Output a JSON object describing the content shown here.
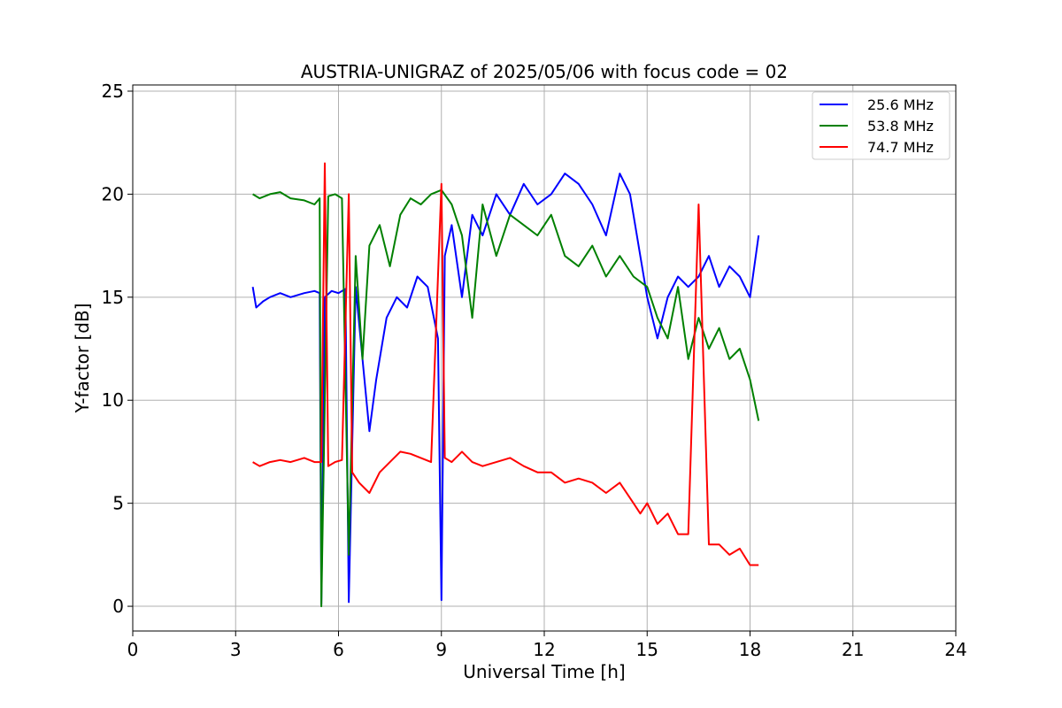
{
  "chart_data": {
    "type": "line",
    "title": "AUSTRIA-UNIGRAZ of 2025/05/06 with focus code = 02",
    "xlabel": "Universal Time [h]",
    "ylabel": "Y-factor [dB]",
    "xlim": [
      0,
      24
    ],
    "ylim": [
      -1.2,
      25.3
    ],
    "xticks": [
      0,
      3,
      6,
      9,
      12,
      15,
      18,
      21,
      24
    ],
    "yticks": [
      0,
      5,
      10,
      15,
      20,
      25
    ],
    "grid": true,
    "legend_position": "top-right",
    "series": [
      {
        "name": "25.6 MHz",
        "color": "#0000ff",
        "x": [
          3.5,
          3.6,
          3.8,
          4.0,
          4.3,
          4.6,
          5.0,
          5.3,
          5.45,
          5.5,
          5.6,
          5.8,
          6.0,
          6.2,
          6.3,
          6.5,
          6.7,
          6.9,
          7.1,
          7.4,
          7.7,
          8.0,
          8.3,
          8.6,
          8.9,
          9.0,
          9.1,
          9.3,
          9.6,
          9.9,
          10.2,
          10.6,
          11.0,
          11.4,
          11.8,
          12.2,
          12.6,
          13.0,
          13.4,
          13.8,
          14.2,
          14.5,
          14.8,
          15.0,
          15.3,
          15.6,
          15.9,
          16.2,
          16.5,
          16.8,
          17.1,
          17.4,
          17.7,
          18.0,
          18.25
        ],
        "y": [
          15.5,
          14.5,
          14.8,
          15.0,
          15.2,
          15.0,
          15.2,
          15.3,
          15.2,
          0.1,
          15.0,
          15.3,
          15.2,
          15.4,
          0.2,
          15.5,
          12.0,
          8.5,
          11.0,
          14.0,
          15.0,
          14.5,
          16.0,
          15.5,
          13.0,
          0.3,
          17.0,
          18.5,
          15.0,
          19.0,
          18.0,
          20.0,
          19.0,
          20.5,
          19.5,
          20.0,
          21.0,
          20.5,
          19.5,
          18.0,
          21.0,
          20.0,
          17.0,
          15.0,
          13.0,
          15.0,
          16.0,
          15.5,
          16.0,
          17.0,
          15.5,
          16.5,
          16.0,
          15.0,
          18.0
        ]
      },
      {
        "name": "53.8 MHz",
        "color": "#008000",
        "x": [
          3.5,
          3.7,
          4.0,
          4.3,
          4.6,
          5.0,
          5.3,
          5.45,
          5.5,
          5.7,
          5.9,
          6.1,
          6.3,
          6.5,
          6.7,
          6.9,
          7.2,
          7.5,
          7.8,
          8.1,
          8.4,
          8.7,
          9.0,
          9.3,
          9.6,
          9.9,
          10.2,
          10.6,
          11.0,
          11.4,
          11.8,
          12.2,
          12.6,
          13.0,
          13.4,
          13.8,
          14.2,
          14.6,
          15.0,
          15.3,
          15.6,
          15.9,
          16.2,
          16.5,
          16.8,
          17.1,
          17.4,
          17.7,
          18.0,
          18.25
        ],
        "y": [
          20.0,
          19.8,
          20.0,
          20.1,
          19.8,
          19.7,
          19.5,
          19.8,
          0.0,
          19.9,
          20.0,
          19.8,
          2.5,
          17.0,
          12.0,
          17.5,
          18.5,
          16.5,
          19.0,
          19.8,
          19.5,
          20.0,
          20.2,
          19.5,
          18.0,
          14.0,
          19.5,
          17.0,
          19.0,
          18.5,
          18.0,
          19.0,
          17.0,
          16.5,
          17.5,
          16.0,
          17.0,
          16.0,
          15.5,
          14.0,
          13.0,
          15.5,
          12.0,
          14.0,
          12.5,
          13.5,
          12.0,
          12.5,
          11.0,
          9.0
        ]
      },
      {
        "name": "74.7 MHz",
        "color": "#ff0000",
        "x": [
          3.5,
          3.7,
          4.0,
          4.3,
          4.6,
          5.0,
          5.3,
          5.5,
          5.6,
          5.7,
          5.9,
          6.1,
          6.3,
          6.4,
          6.6,
          6.9,
          7.2,
          7.5,
          7.8,
          8.1,
          8.4,
          8.7,
          9.0,
          9.1,
          9.3,
          9.6,
          9.9,
          10.2,
          10.6,
          11.0,
          11.4,
          11.8,
          12.2,
          12.6,
          13.0,
          13.4,
          13.8,
          14.2,
          14.6,
          14.8,
          15.0,
          15.3,
          15.6,
          15.9,
          16.2,
          16.5,
          16.8,
          17.1,
          17.4,
          17.7,
          18.0,
          18.25
        ],
        "y": [
          7.0,
          6.8,
          7.0,
          7.1,
          7.0,
          7.2,
          7.0,
          7.0,
          21.5,
          6.8,
          7.0,
          7.1,
          20.0,
          6.5,
          6.0,
          5.5,
          6.5,
          7.0,
          7.5,
          7.4,
          7.2,
          7.0,
          20.5,
          7.2,
          7.0,
          7.5,
          7.0,
          6.8,
          7.0,
          7.2,
          6.8,
          6.5,
          6.5,
          6.0,
          6.2,
          6.0,
          5.5,
          6.0,
          5.0,
          4.5,
          5.0,
          4.0,
          4.5,
          3.5,
          3.5,
          19.5,
          3.0,
          3.0,
          2.5,
          2.8,
          2.0,
          2.0
        ]
      }
    ]
  }
}
